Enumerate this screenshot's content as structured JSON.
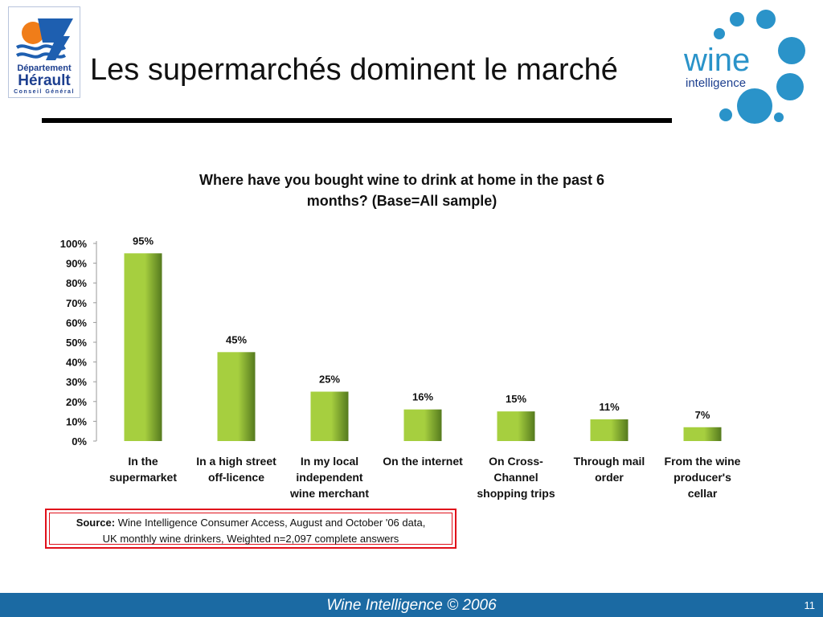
{
  "logo_left": {
    "line1": "Département",
    "line2": "Hérault",
    "line3": "Conseil Général"
  },
  "slide_title": "Les supermarchés dominent le marché",
  "logo_right": {
    "word1": "wine",
    "word2": "intelligence"
  },
  "chart_data": {
    "type": "bar",
    "title_line1": "Where have you bought wine to drink at home in the past 6",
    "title_line2": "months? (Base=All sample)",
    "categories": [
      [
        "In the",
        "supermarket"
      ],
      [
        "In a high street",
        "off-licence"
      ],
      [
        "In my local",
        "independent",
        "wine merchant"
      ],
      [
        "On the internet"
      ],
      [
        "On Cross-",
        "Channel",
        "shopping trips"
      ],
      [
        "Through mail",
        "order"
      ],
      [
        "From the wine",
        "producer's",
        "cellar"
      ]
    ],
    "values": [
      95,
      45,
      25,
      16,
      15,
      11,
      7
    ],
    "value_labels": [
      "95%",
      "45%",
      "25%",
      "16%",
      "15%",
      "11%",
      "7%"
    ],
    "yticks": [
      "0%",
      "10%",
      "20%",
      "30%",
      "40%",
      "50%",
      "60%",
      "70%",
      "80%",
      "90%",
      "100%"
    ],
    "ylim": [
      0,
      100
    ],
    "colors": {
      "bar_light": "#a6cf3f",
      "bar_dark": "#557a1e"
    }
  },
  "source": {
    "label": "Source:",
    "line1": "Wine Intelligence Consumer Access, August and October '06 data,",
    "line2": "UK monthly wine drinkers, Weighted n=2,097 complete answers"
  },
  "footer": {
    "text": "Wine Intelligence © 2006",
    "page": "11"
  },
  "colors": {
    "footer_bg": "#1b6aa3",
    "source_border": "#e0101a",
    "logo_blue": "#1d3f8f",
    "wine_blue": "#2a93c9"
  }
}
